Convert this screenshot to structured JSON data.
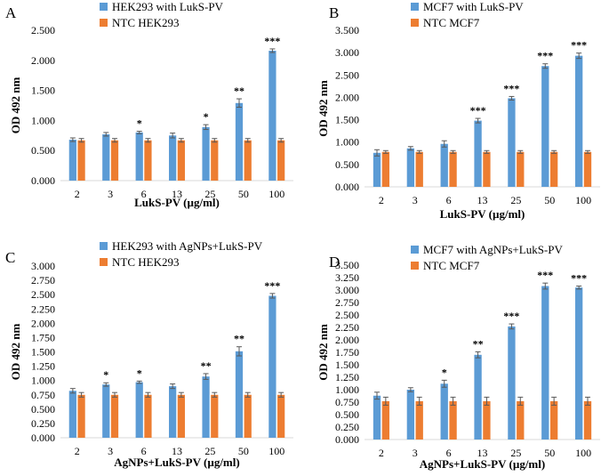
{
  "colors": {
    "series1": "#5B9BD5",
    "series2": "#ED7D31",
    "errorbar": "#595959",
    "axis": "#D9D9D9"
  },
  "chart_data": [
    {
      "panel": "A",
      "type": "bar",
      "categories": [
        "2",
        "3",
        "6",
        "13",
        "25",
        "50",
        "100"
      ],
      "series": [
        {
          "name": "HEK293  with LukS-PV",
          "values": [
            0.68,
            0.77,
            0.8,
            0.75,
            0.89,
            1.29,
            2.16
          ],
          "errors": [
            0.03,
            0.03,
            0.02,
            0.04,
            0.04,
            0.07,
            0.03
          ]
        },
        {
          "name": "NTC HEK293",
          "values": [
            0.67,
            0.67,
            0.67,
            0.67,
            0.67,
            0.67,
            0.67
          ],
          "errors": [
            0.03,
            0.03,
            0.03,
            0.03,
            0.03,
            0.03,
            0.03
          ]
        }
      ],
      "significance": [
        "",
        "",
        "*",
        "",
        "*",
        "**",
        "***"
      ],
      "xlabel": "LukS-PV (µg/ml)",
      "ylabel": "OD 492 nm",
      "yticks": [
        "0.000",
        "0.500",
        "1.000",
        "1.500",
        "2.000",
        "2.500"
      ],
      "ylim": [
        0,
        2.5
      ],
      "legend": "top-left"
    },
    {
      "panel": "B",
      "type": "bar",
      "categories": [
        "2",
        "3",
        "6",
        "13",
        "25",
        "50",
        "100"
      ],
      "series": [
        {
          "name": "MCF7  with LukS-PV",
          "values": [
            0.76,
            0.86,
            0.96,
            1.48,
            1.98,
            2.7,
            2.93
          ],
          "errors": [
            0.07,
            0.04,
            0.07,
            0.05,
            0.04,
            0.05,
            0.06
          ]
        },
        {
          "name": "NTC MCF7",
          "values": [
            0.78,
            0.78,
            0.78,
            0.78,
            0.78,
            0.78,
            0.78
          ],
          "errors": [
            0.03,
            0.03,
            0.03,
            0.03,
            0.03,
            0.03,
            0.03
          ]
        }
      ],
      "significance": [
        "",
        "",
        "",
        "***",
        "***",
        "***",
        "***"
      ],
      "xlabel": "LukS-PV (µg/ml)",
      "ylabel": "OD 492 nm",
      "yticks": [
        "0.000",
        "0.500",
        "1.000",
        "1.500",
        "2.000",
        "2.500",
        "3.000",
        "3.500"
      ],
      "ylim": [
        0,
        3.5
      ],
      "legend": "top-left"
    },
    {
      "panel": "C",
      "type": "bar",
      "categories": [
        "2",
        "3",
        "6",
        "13",
        "25",
        "50",
        "100"
      ],
      "series": [
        {
          "name": "HEK293 with AgNPs+LukS-PV",
          "values": [
            0.82,
            0.93,
            0.97,
            0.9,
            1.07,
            1.51,
            2.48
          ],
          "errors": [
            0.04,
            0.03,
            0.02,
            0.04,
            0.05,
            0.08,
            0.04
          ]
        },
        {
          "name": "NTC HEK293",
          "values": [
            0.75,
            0.75,
            0.75,
            0.75,
            0.75,
            0.75,
            0.75
          ],
          "errors": [
            0.04,
            0.04,
            0.04,
            0.04,
            0.04,
            0.04,
            0.04
          ]
        }
      ],
      "significance": [
        "",
        "*",
        "*",
        "",
        "**",
        "**",
        "***"
      ],
      "xlabel": "AgNPs+LukS-PV (µg/ml)",
      "ylabel": "OD 492 nm",
      "yticks": [
        "0.000",
        "0.250",
        "0.500",
        "0.750",
        "1.000",
        "1.250",
        "1.500",
        "1.750",
        "2.000",
        "2.250",
        "2.500",
        "2.750",
        "3.000"
      ],
      "ylim": [
        0,
        3.0
      ],
      "legend": "top-left"
    },
    {
      "panel": "D",
      "type": "bar",
      "categories": [
        "2",
        "3",
        "6",
        "13",
        "25",
        "50",
        "100"
      ],
      "series": [
        {
          "name": "MCF7  with AgNPs+LukS-PV",
          "values": [
            0.88,
            1.0,
            1.12,
            1.7,
            2.27,
            3.08,
            3.05
          ],
          "errors": [
            0.07,
            0.04,
            0.07,
            0.06,
            0.05,
            0.06,
            0.03
          ]
        },
        {
          "name": "NTC MCF7",
          "values": [
            0.77,
            0.77,
            0.77,
            0.77,
            0.77,
            0.77,
            0.77
          ],
          "errors": [
            0.08,
            0.08,
            0.08,
            0.08,
            0.08,
            0.08,
            0.08
          ]
        }
      ],
      "significance": [
        "",
        "",
        "*",
        "**",
        "***",
        "***",
        "***"
      ],
      "xlabel": "AgNPs+LukS-PV (µg/ml)",
      "ylabel": "OD 492 nm",
      "yticks": [
        "0.000",
        "0.250",
        "0.500",
        "0.750",
        "1.000",
        "1.250",
        "1.500",
        "1.750",
        "2.000",
        "2.250",
        "2.500",
        "2.750",
        "3.000",
        "3.250",
        "3.500"
      ],
      "ylim": [
        0,
        3.5
      ],
      "legend": "top-left"
    }
  ]
}
